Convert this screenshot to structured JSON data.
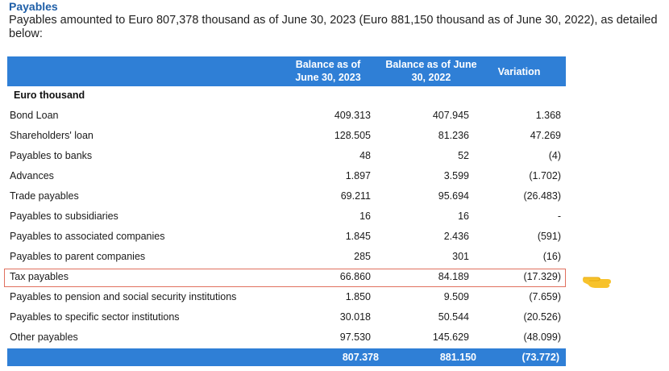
{
  "title": "Payables",
  "intro": "Payables amounted to Euro 807,378 thousand as of June 30, 2023 (Euro 881,150 thousand as of June 30, 2022), as detailed below:",
  "headers": {
    "col1": "Balance as of June 30, 2023",
    "col2": "Balance as of June 30, 2022",
    "col3": "Variation"
  },
  "section_label": "Euro thousand",
  "rows": [
    {
      "label": "Bond Loan",
      "v2023": "409.313",
      "v2022": "407.945",
      "variation": "1.368"
    },
    {
      "label": "Shareholders' loan",
      "v2023": "128.505",
      "v2022": "81.236",
      "variation": "47.269"
    },
    {
      "label": "Payables to banks",
      "v2023": "48",
      "v2022": "52",
      "variation": "(4)"
    },
    {
      "label": "Advances",
      "v2023": "1.897",
      "v2022": "3.599",
      "variation": "(1.702)"
    },
    {
      "label": "Trade payables",
      "v2023": "69.211",
      "v2022": "95.694",
      "variation": "(26.483)"
    },
    {
      "label": "Payables to subsidiaries",
      "v2023": "16",
      "v2022": "16",
      "variation": "-"
    },
    {
      "label": "Payables to associated companies",
      "v2023": "1.845",
      "v2022": "2.436",
      "variation": "(591)"
    },
    {
      "label": "Payables to parent companies",
      "v2023": "285",
      "v2022": "301",
      "variation": "(16)"
    },
    {
      "label": "Tax payables",
      "v2023": "66.860",
      "v2022": "84.189",
      "variation": "(17.329)"
    },
    {
      "label": "Payables to pension and social security institutions",
      "v2023": "1.850",
      "v2022": "9.509",
      "variation": "(7.659)"
    },
    {
      "label": "Payables to specific sector institutions",
      "v2023": "30.018",
      "v2022": "50.544",
      "variation": "(20.526)"
    },
    {
      "label": "Other payables",
      "v2023": "97.530",
      "v2022": "145.629",
      "variation": "(48.099)"
    }
  ],
  "total": {
    "v2023": "807.378",
    "v2022": "881.150",
    "variation": "(73.772)"
  },
  "colors": {
    "accent": "#2f7fd6",
    "title": "#1f5fa8",
    "highlight": "#e0705e",
    "pointer": "#f7c22b"
  },
  "highlighted_row": "Tax payables",
  "pointer_icon": "pointing-hand-icon"
}
